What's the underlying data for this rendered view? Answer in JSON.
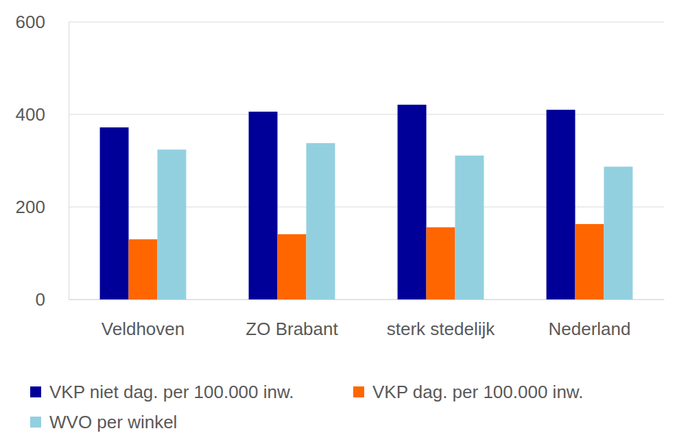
{
  "chart_data": {
    "type": "bar",
    "categories": [
      "Veldhoven",
      "ZO Brabant",
      "sterk stedelijk",
      "Nederland"
    ],
    "series": [
      {
        "name": "VKP niet dag. per 100.000 inw.",
        "color": "#000099",
        "values": [
          372,
          406,
          421,
          410
        ]
      },
      {
        "name": "VKP dag. per 100.000 inw.",
        "color": "#ff6600",
        "values": [
          130,
          141,
          156,
          163
        ]
      },
      {
        "name": "WVO per winkel",
        "color": "#92d0e0",
        "values": [
          324,
          338,
          311,
          287
        ]
      }
    ],
    "ylim": [
      0,
      600
    ],
    "yticks": [
      0,
      200,
      400,
      600
    ],
    "grid": true,
    "legend": "bottom"
  }
}
